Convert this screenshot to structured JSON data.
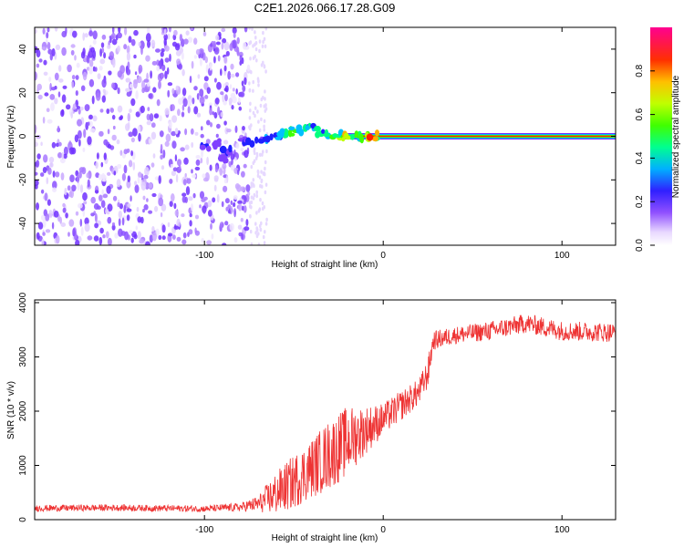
{
  "chart_data": [
    {
      "type": "heatmap",
      "title": "C2E1.2026.066.17.28.G09",
      "xlabel": "Height of straight line (km)",
      "ylabel": "Frequency (Hz)",
      "xlim": [
        -195,
        130
      ],
      "ylim": [
        -50,
        50
      ],
      "xticks": [
        -100,
        0,
        100
      ],
      "xtick_labels": [
        "-100",
        "0",
        "100"
      ],
      "yticks": [
        -40,
        -20,
        0,
        20,
        40
      ],
      "ytick_labels": [
        "-40",
        "-20",
        "0",
        "20",
        "40"
      ],
      "colorbar": {
        "label": "Normalized spectral amplitude",
        "range": [
          0,
          1
        ],
        "ticks": [
          0.0,
          0.2,
          0.4,
          0.6,
          0.8
        ],
        "tick_labels": [
          "0.0",
          "0.2",
          "0.4",
          "0.6",
          "0.8"
        ],
        "colormap": [
          "#ffffff",
          "#d9b8ff",
          "#8040ff",
          "#2020ff",
          "#00c0ff",
          "#00ff80",
          "#40ff00",
          "#c0ff00",
          "#ffb000",
          "#ff2000",
          "#ff0080"
        ]
      },
      "noise_region_km": [
        -195,
        -75
      ],
      "faint_region_km": [
        -75,
        -65
      ],
      "feature_points": [
        {
          "x": -100,
          "y": -5,
          "amp": 0.3
        },
        {
          "x": -92,
          "y": -3,
          "amp": 0.25
        },
        {
          "x": -90,
          "y": -10,
          "amp": 0.28
        },
        {
          "x": -88,
          "y": -6,
          "amp": 0.3
        },
        {
          "x": -80,
          "y": -2,
          "amp": 0.28
        },
        {
          "x": -75,
          "y": -3,
          "amp": 0.32
        },
        {
          "x": -70,
          "y": -2,
          "amp": 0.35
        },
        {
          "x": -65,
          "y": -1,
          "amp": 0.4
        },
        {
          "x": -60,
          "y": 0,
          "amp": 0.45
        },
        {
          "x": -55,
          "y": 1,
          "amp": 0.5
        },
        {
          "x": -50,
          "y": 2,
          "amp": 0.55
        },
        {
          "x": -45,
          "y": 3,
          "amp": 0.5
        },
        {
          "x": -40,
          "y": 4,
          "amp": 0.45
        },
        {
          "x": -35,
          "y": 2,
          "amp": 0.5
        },
        {
          "x": -30,
          "y": 1,
          "amp": 0.6
        },
        {
          "x": -25,
          "y": 0,
          "amp": 0.7
        },
        {
          "x": -20,
          "y": 0,
          "amp": 0.75
        },
        {
          "x": -15,
          "y": 0,
          "amp": 0.65
        },
        {
          "x": -10,
          "y": 0,
          "amp": 0.7
        },
        {
          "x": -5,
          "y": 0,
          "amp": 0.8
        }
      ],
      "carrier": {
        "x_start": -25,
        "x_end": 130,
        "freq": 0
      }
    },
    {
      "type": "line",
      "xlabel": "Height of straight line (km)",
      "ylabel": "SNR (10 * v/v)",
      "xlim": [
        -195,
        130
      ],
      "ylim": [
        0,
        4050
      ],
      "xticks": [
        -100,
        0,
        100
      ],
      "xtick_labels": [
        "-100",
        "0",
        "100"
      ],
      "yticks": [
        0,
        1000,
        2000,
        3000,
        4000
      ],
      "ytick_labels": [
        "0",
        "1000",
        "2000",
        "3000",
        "4000"
      ],
      "line_color": "#ee3333",
      "series": [
        {
          "name": "SNR",
          "x": [
            -195,
            -150,
            -100,
            -80,
            -70,
            -60,
            -50,
            -40,
            -30,
            -20,
            -10,
            0,
            10,
            20,
            25,
            28,
            40,
            60,
            80,
            100,
            130
          ],
          "y": [
            210,
            220,
            200,
            230,
            290,
            480,
            700,
            950,
            1200,
            1450,
            1650,
            1850,
            2100,
            2350,
            2700,
            3300,
            3400,
            3480,
            3620,
            3480,
            3450
          ],
          "noise": [
            60,
            60,
            60,
            80,
            150,
            400,
            500,
            550,
            650,
            650,
            450,
            300,
            280,
            250,
            280,
            180,
            160,
            180,
            180,
            180,
            180
          ]
        }
      ]
    }
  ]
}
